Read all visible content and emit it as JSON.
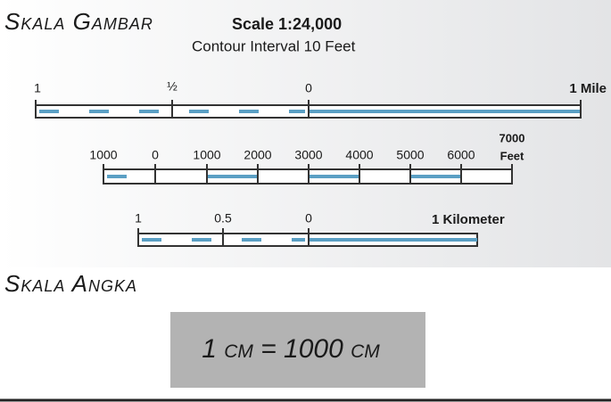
{
  "header": {
    "title": "Skala Gambar",
    "scale": "Scale 1:24,000",
    "contour": "Contour Interval 10 Feet"
  },
  "scale_bars": [
    {
      "unit": "1 Mile",
      "ticks": [
        "1",
        "½",
        "0"
      ]
    },
    {
      "unit_value": "7000",
      "unit": "Feet",
      "ticks": [
        "1000",
        "0",
        "1000",
        "2000",
        "3000",
        "4000",
        "5000",
        "6000"
      ]
    },
    {
      "unit": "1 Kilometer",
      "ticks": [
        "1",
        "0.5",
        "0"
      ]
    }
  ],
  "section": "Skala Angka",
  "ratio": "1 cm = 1000 cm"
}
